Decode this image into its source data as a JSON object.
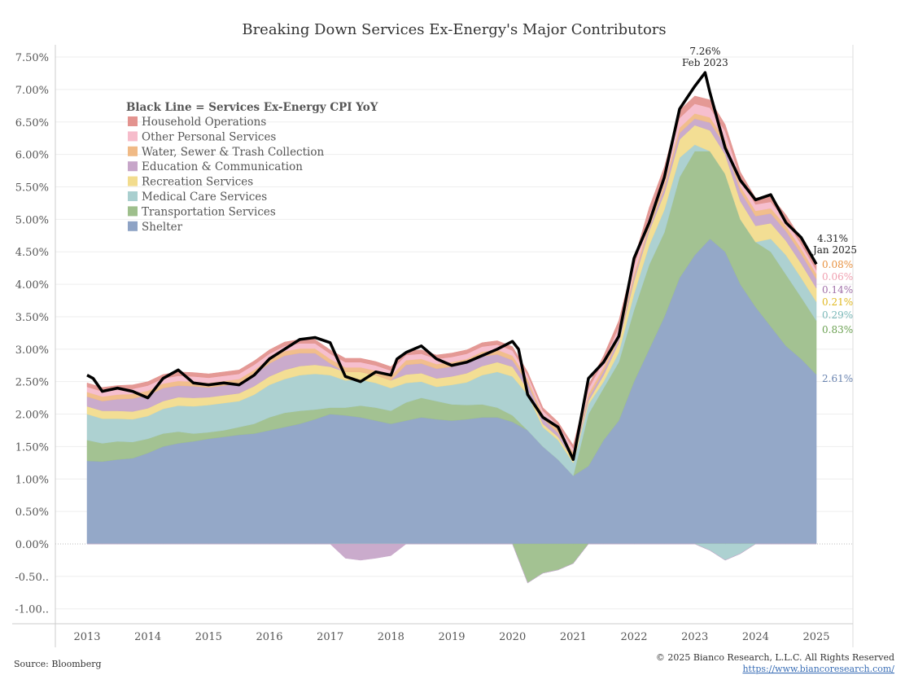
{
  "chart_data": {
    "type": "area",
    "stacked": true,
    "title": "Breaking Down Services Ex-Energy's Major Contributors",
    "xlabel": "",
    "ylabel": "",
    "ylim": [
      -1.23,
      7.7
    ],
    "xlim": [
      2012.5,
      2025.6
    ],
    "x_ticks": [
      "2013",
      "2014",
      "2015",
      "2016",
      "2017",
      "2018",
      "2019",
      "2020",
      "2021",
      "2022",
      "2023",
      "2024",
      "2025"
    ],
    "y_ticks": [
      {
        "v": 7.5,
        "label": "7.50%"
      },
      {
        "v": 7.0,
        "label": "7.00%"
      },
      {
        "v": 6.5,
        "label": "6.50%"
      },
      {
        "v": 6.0,
        "label": "6.00%"
      },
      {
        "v": 5.5,
        "label": "5.50%"
      },
      {
        "v": 5.0,
        "label": "5.00%"
      },
      {
        "v": 4.5,
        "label": "4.50%"
      },
      {
        "v": 4.0,
        "label": "4.00%"
      },
      {
        "v": 3.5,
        "label": "3.50%"
      },
      {
        "v": 3.0,
        "label": "3.00%"
      },
      {
        "v": 2.5,
        "label": "2.50%"
      },
      {
        "v": 2.0,
        "label": "2.00%"
      },
      {
        "v": 1.5,
        "label": "1.50%"
      },
      {
        "v": 1.0,
        "label": "1.00%"
      },
      {
        "v": 0.5,
        "label": "0.50%"
      },
      {
        "v": 0.0,
        "label": "0.00%"
      },
      {
        "v": -0.5,
        "label": "-0.50.."
      },
      {
        "v": -1.0,
        "label": "-1.00.."
      }
    ],
    "grid": true,
    "legend_title": "Black Line = Services Ex-Energy CPI YoY",
    "legend_placement": "top-left",
    "x_start": 2013,
    "x_step": 0.25,
    "series": [
      {
        "name": "Shelter",
        "color": "#8ea3c5",
        "label_color": "#6a84b0",
        "end_label": "2.61%",
        "values": [
          1.28,
          1.27,
          1.3,
          1.32,
          1.4,
          1.5,
          1.55,
          1.58,
          1.62,
          1.65,
          1.68,
          1.7,
          1.75,
          1.8,
          1.85,
          1.92,
          2.0,
          1.98,
          1.95,
          1.9,
          1.85,
          1.9,
          1.95,
          1.92,
          1.9,
          1.92,
          1.95,
          1.95,
          1.88,
          1.75,
          1.5,
          1.3,
          1.05,
          1.2,
          1.6,
          1.9,
          2.5,
          3.0,
          3.5,
          4.1,
          4.45,
          4.7,
          4.5,
          4.0,
          3.65,
          3.35,
          3.05,
          2.85,
          2.61
        ]
      },
      {
        "name": "Transportation Services",
        "color": "#9ebf8c",
        "label_color": "#6aa050",
        "end_label": "0.83%",
        "values": [
          0.32,
          0.28,
          0.28,
          0.25,
          0.22,
          0.2,
          0.18,
          0.12,
          0.1,
          0.1,
          0.12,
          0.15,
          0.2,
          0.22,
          0.2,
          0.15,
          0.1,
          0.12,
          0.18,
          0.2,
          0.2,
          0.28,
          0.3,
          0.28,
          0.25,
          0.22,
          0.2,
          0.15,
          0.1,
          -0.6,
          -0.45,
          -0.4,
          -0.3,
          0.8,
          0.8,
          0.9,
          1.1,
          1.3,
          1.3,
          1.55,
          1.6,
          1.35,
          1.2,
          1.0,
          1.0,
          1.15,
          1.1,
          0.95,
          0.83
        ]
      },
      {
        "name": "Medical Care Services",
        "color": "#a9cfcf",
        "label_color": "#7ab8b8",
        "end_label": "0.29%",
        "values": [
          0.4,
          0.38,
          0.35,
          0.35,
          0.35,
          0.38,
          0.4,
          0.42,
          0.42,
          0.42,
          0.4,
          0.45,
          0.5,
          0.52,
          0.55,
          0.55,
          0.5,
          0.42,
          0.4,
          0.38,
          0.35,
          0.3,
          0.25,
          0.22,
          0.3,
          0.35,
          0.45,
          0.55,
          0.6,
          0.55,
          0.3,
          0.3,
          0.2,
          0.15,
          0.1,
          0.15,
          0.25,
          0.3,
          0.35,
          0.3,
          0.1,
          -0.1,
          -0.25,
          -0.15,
          0.0,
          0.2,
          0.3,
          0.3,
          0.29
        ]
      },
      {
        "name": "Recreation Services",
        "color": "#f2dc8e",
        "label_color": "#e0b820",
        "end_label": "0.21%",
        "values": [
          0.12,
          0.12,
          0.12,
          0.12,
          0.12,
          0.12,
          0.13,
          0.13,
          0.12,
          0.12,
          0.12,
          0.13,
          0.13,
          0.14,
          0.14,
          0.14,
          0.13,
          0.13,
          0.12,
          0.12,
          0.12,
          0.13,
          0.13,
          0.13,
          0.13,
          0.14,
          0.14,
          0.15,
          0.15,
          0.08,
          0.05,
          0.05,
          0.05,
          0.05,
          0.1,
          0.15,
          0.2,
          0.22,
          0.25,
          0.28,
          0.3,
          0.32,
          0.3,
          0.28,
          0.25,
          0.24,
          0.22,
          0.22,
          0.21
        ]
      },
      {
        "name": "Education & Communication",
        "color": "#c7a6c9",
        "label_color": "#a070a8",
        "end_label": "0.14%",
        "values": [
          0.15,
          0.15,
          0.18,
          0.2,
          0.2,
          0.2,
          0.18,
          0.18,
          0.15,
          0.15,
          0.15,
          0.18,
          0.2,
          0.22,
          0.2,
          0.18,
          0.05,
          -0.22,
          -0.25,
          -0.22,
          -0.18,
          0.15,
          0.15,
          0.15,
          0.15,
          0.15,
          0.15,
          0.12,
          0.1,
          0.1,
          0.08,
          0.06,
          0.05,
          0.05,
          0.06,
          0.06,
          0.05,
          0.05,
          0.08,
          0.1,
          0.1,
          0.12,
          0.14,
          0.15,
          0.15,
          0.15,
          0.15,
          0.15,
          0.14
        ]
      },
      {
        "name": "Water, Sewer & Trash Collection",
        "color": "#f0ba86",
        "label_color": "#e8913f",
        "end_label": "0.08%",
        "values": [
          0.07,
          0.07,
          0.07,
          0.07,
          0.07,
          0.07,
          0.07,
          0.07,
          0.07,
          0.07,
          0.07,
          0.07,
          0.07,
          0.07,
          0.07,
          0.07,
          0.07,
          0.07,
          0.07,
          0.07,
          0.07,
          0.07,
          0.07,
          0.07,
          0.07,
          0.07,
          0.07,
          0.07,
          0.07,
          0.06,
          0.06,
          0.06,
          0.06,
          0.06,
          0.06,
          0.06,
          0.06,
          0.06,
          0.07,
          0.08,
          0.08,
          0.08,
          0.08,
          0.08,
          0.08,
          0.08,
          0.08,
          0.08,
          0.08
        ]
      },
      {
        "name": "Other Personal Services",
        "color": "#f6bccb",
        "label_color": "#f0a0b0",
        "end_label": "0.06%",
        "values": [
          0.08,
          0.08,
          0.08,
          0.08,
          0.08,
          0.08,
          0.08,
          0.08,
          0.08,
          0.08,
          0.08,
          0.08,
          0.08,
          0.08,
          0.08,
          0.08,
          0.08,
          0.08,
          0.08,
          0.08,
          0.08,
          0.08,
          0.08,
          0.08,
          0.08,
          0.08,
          0.08,
          0.08,
          0.08,
          0.06,
          0.06,
          0.06,
          0.06,
          0.08,
          0.1,
          0.12,
          0.12,
          0.13,
          0.14,
          0.15,
          0.15,
          0.15,
          0.14,
          0.12,
          0.1,
          0.1,
          0.08,
          0.07,
          0.06
        ]
      },
      {
        "name": "Household Operations",
        "color": "#e3938f",
        "label_color": "#e3938f",
        "values": [
          0.06,
          0.06,
          0.06,
          0.06,
          0.06,
          0.06,
          0.06,
          0.06,
          0.06,
          0.06,
          0.06,
          0.06,
          0.06,
          0.06,
          0.06,
          0.06,
          0.06,
          0.06,
          0.06,
          0.06,
          0.06,
          0.06,
          0.06,
          0.06,
          0.06,
          0.06,
          0.06,
          0.06,
          0.06,
          0.05,
          0.05,
          0.05,
          0.05,
          0.06,
          0.08,
          0.1,
          0.1,
          0.12,
          0.12,
          0.12,
          0.12,
          0.12,
          0.1,
          0.1,
          0.1,
          0.09,
          0.09,
          0.08,
          0.08
        ]
      }
    ],
    "total": {
      "name": "Services Ex-Energy CPI YoY",
      "color": "#000000",
      "x": [
        2013,
        2013.1,
        2013.25,
        2013.5,
        2013.75,
        2014,
        2014.25,
        2014.5,
        2014.75,
        2015,
        2015.25,
        2015.5,
        2015.75,
        2016,
        2016.25,
        2016.5,
        2016.75,
        2017,
        2017.25,
        2017.5,
        2017.75,
        2018,
        2018.1,
        2018.25,
        2018.5,
        2018.75,
        2019,
        2019.25,
        2019.5,
        2019.75,
        2020,
        2020.1,
        2020.25,
        2020.5,
        2020.75,
        2021,
        2021.25,
        2021.5,
        2021.75,
        2022,
        2022.25,
        2022.5,
        2022.75,
        2023,
        2023.17,
        2023.25,
        2023.5,
        2023.75,
        2024,
        2024.25,
        2024.5,
        2024.75,
        2025
      ],
      "values": [
        2.6,
        2.55,
        2.35,
        2.4,
        2.35,
        2.25,
        2.55,
        2.68,
        2.48,
        2.45,
        2.48,
        2.45,
        2.6,
        2.85,
        3.0,
        3.15,
        3.18,
        3.1,
        2.58,
        2.5,
        2.65,
        2.6,
        2.85,
        2.95,
        3.05,
        2.85,
        2.75,
        2.8,
        2.9,
        3.0,
        3.12,
        3.0,
        2.3,
        1.95,
        1.8,
        1.3,
        2.55,
        2.8,
        3.2,
        4.4,
        4.95,
        5.65,
        6.7,
        7.05,
        7.26,
        6.95,
        6.1,
        5.6,
        5.3,
        5.38,
        4.95,
        4.72,
        4.31
      ]
    },
    "annotations": [
      {
        "value_label": "7.26%",
        "date_label": "Feb 2023",
        "x": 2023.17,
        "y": 7.26
      },
      {
        "value_label": "4.31%",
        "date_label": "Jan 2025",
        "x": 2025,
        "y": 4.31
      }
    ]
  },
  "footer": {
    "source": "Source: Bloomberg",
    "copyright": "© 2025 Bianco Research, L.L.C. All Rights Reserved",
    "link": "https://www.biancoresearch.com/"
  }
}
